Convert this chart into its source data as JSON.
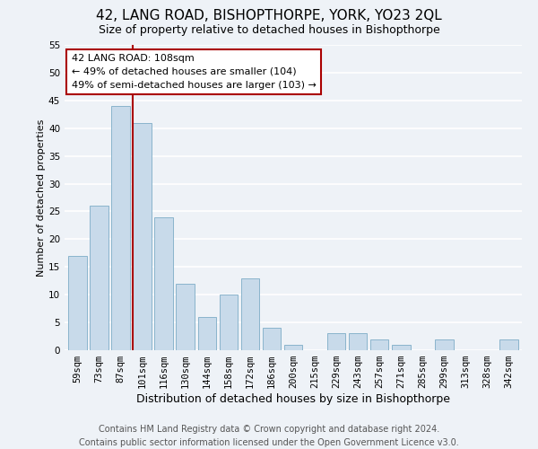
{
  "title": "42, LANG ROAD, BISHOPTHORPE, YORK, YO23 2QL",
  "subtitle": "Size of property relative to detached houses in Bishopthorpe",
  "xlabel": "Distribution of detached houses by size in Bishopthorpe",
  "ylabel": "Number of detached properties",
  "bar_labels": [
    "59sqm",
    "73sqm",
    "87sqm",
    "101sqm",
    "116sqm",
    "130sqm",
    "144sqm",
    "158sqm",
    "172sqm",
    "186sqm",
    "200sqm",
    "215sqm",
    "229sqm",
    "243sqm",
    "257sqm",
    "271sqm",
    "285sqm",
    "299sqm",
    "313sqm",
    "328sqm",
    "342sqm"
  ],
  "bar_values_full": [
    17,
    26,
    44,
    41,
    24,
    12,
    6,
    10,
    13,
    4,
    1,
    0,
    3,
    3,
    2,
    1,
    0,
    2,
    0,
    0,
    2
  ],
  "bar_color": "#c8daea",
  "bar_edgecolor": "#8ab4cc",
  "vline_color": "#aa0000",
  "ylim": [
    0,
    55
  ],
  "yticks": [
    0,
    5,
    10,
    15,
    20,
    25,
    30,
    35,
    40,
    45,
    50,
    55
  ],
  "annotation_title": "42 LANG ROAD: 108sqm",
  "annotation_line1": "← 49% of detached houses are smaller (104)",
  "annotation_line2": "49% of semi-detached houses are larger (103) →",
  "annotation_box_color": "#ffffff",
  "annotation_box_edgecolor": "#aa0000",
  "footer_line1": "Contains HM Land Registry data © Crown copyright and database right 2024.",
  "footer_line2": "Contains public sector information licensed under the Open Government Licence v3.0.",
  "background_color": "#eef2f7",
  "grid_color": "#ffffff",
  "title_fontsize": 11,
  "subtitle_fontsize": 9,
  "xlabel_fontsize": 9,
  "ylabel_fontsize": 8,
  "tick_fontsize": 7.5,
  "footer_fontsize": 7,
  "annotation_fontsize": 8
}
